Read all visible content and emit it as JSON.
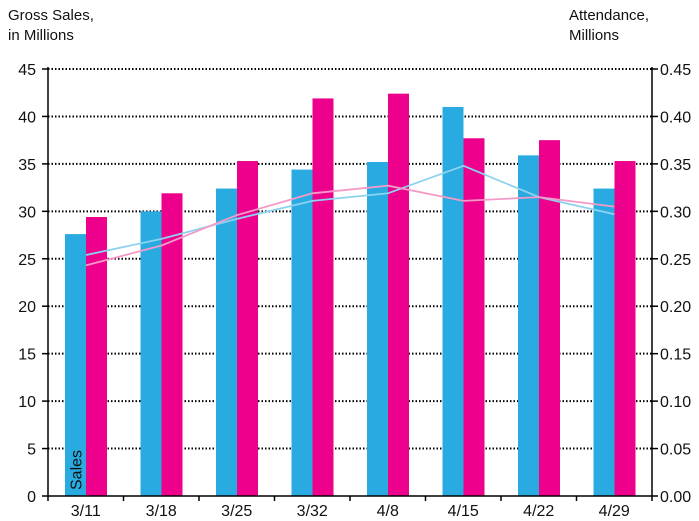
{
  "chart_data": {
    "type": "bar",
    "ylabel_left": "Gross Sales,\nin Millions",
    "ylabel_right": "Attendance,\nMillions",
    "categories": [
      "3/11",
      "3/18",
      "3/25",
      "3/32",
      "4/8",
      "4/15",
      "4/22",
      "4/29"
    ],
    "ylim_left": [
      0,
      45
    ],
    "ylim_right": [
      0,
      0.45
    ],
    "yticks_left": [
      "0",
      "5",
      "10",
      "15",
      "20",
      "25",
      "30",
      "35",
      "40",
      "45"
    ],
    "yticks_right": [
      "0.00",
      "0.05",
      "0.10",
      "0.15",
      "0.20",
      "0.25",
      "0.30",
      "0.35",
      "0.40",
      "0.45"
    ],
    "grid": "dotted horizontal",
    "bar_series": [
      {
        "label": "Sales",
        "color": "#29abe2",
        "values": [
          27.6,
          30.0,
          32.4,
          34.4,
          35.2,
          41.0,
          35.9,
          32.4
        ]
      },
      {
        "color": "#ec008c",
        "values": [
          29.4,
          31.9,
          35.3,
          41.9,
          42.4,
          37.7,
          37.5,
          35.3
        ]
      }
    ],
    "line_series": [
      {
        "axis": "right",
        "color": "#8dd3ef",
        "values": [
          0.254,
          0.271,
          0.292,
          0.311,
          0.319,
          0.348,
          0.315,
          0.297
        ]
      },
      {
        "axis": "right",
        "color": "#f49ac9",
        "values": [
          0.243,
          0.264,
          0.296,
          0.319,
          0.327,
          0.311,
          0.315,
          0.305
        ]
      }
    ]
  }
}
